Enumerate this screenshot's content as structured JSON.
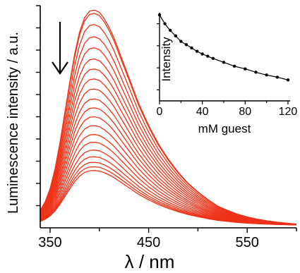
{
  "chart_data": [
    {
      "type": "line",
      "title": "",
      "xlabel": "λ / nm",
      "ylabel": "Luminescence intensity / a.u.",
      "xlim": [
        340,
        600
      ],
      "ylim": [
        0,
        1.0
      ],
      "x_ticks": [
        350,
        450,
        550
      ],
      "y_ticks_labeled": false,
      "grid": false,
      "legend": "none",
      "line_color": "#ee3318",
      "annotation": "down-arrow",
      "peak_wavelength": 397,
      "x": [
        340,
        345,
        350,
        355,
        360,
        365,
        370,
        375,
        380,
        385,
        390,
        395,
        400,
        405,
        410,
        415,
        420,
        425,
        430,
        435,
        440,
        445,
        450,
        460,
        470,
        480,
        490,
        500,
        510,
        520,
        530,
        540,
        550,
        560,
        570,
        580,
        590,
        600
      ],
      "profile": [
        0.08,
        0.12,
        0.18,
        0.27,
        0.39,
        0.53,
        0.67,
        0.8,
        0.9,
        0.965,
        0.995,
        1.0,
        0.99,
        0.96,
        0.92,
        0.87,
        0.81,
        0.75,
        0.69,
        0.63,
        0.57,
        0.52,
        0.47,
        0.385,
        0.315,
        0.255,
        0.205,
        0.165,
        0.13,
        0.1,
        0.08,
        0.063,
        0.05,
        0.04,
        0.032,
        0.026,
        0.021,
        0.017
      ],
      "series_peak_intensity": [
        0.98,
        0.965,
        0.915,
        0.86,
        0.81,
        0.76,
        0.715,
        0.67,
        0.625,
        0.58,
        0.54,
        0.5,
        0.46,
        0.42,
        0.385,
        0.35,
        0.32,
        0.295,
        0.275,
        0.258
      ]
    },
    {
      "type": "scatter",
      "title": "",
      "xlabel": "mM guest",
      "ylabel": "Intensity",
      "xlim": [
        0,
        122
      ],
      "ylim": [
        0.2,
        1.0
      ],
      "x_ticks": [
        0,
        40,
        80,
        120
      ],
      "y_ticks_labeled": false,
      "grid": false,
      "fit_line": true,
      "x": [
        0,
        5,
        10,
        15,
        20,
        25,
        30,
        35,
        40,
        45,
        50,
        60,
        70,
        80,
        90,
        100,
        110,
        120
      ],
      "y": [
        0.98,
        0.9,
        0.84,
        0.79,
        0.74,
        0.71,
        0.68,
        0.65,
        0.625,
        0.605,
        0.585,
        0.55,
        0.515,
        0.49,
        0.46,
        0.435,
        0.415,
        0.39
      ]
    }
  ]
}
